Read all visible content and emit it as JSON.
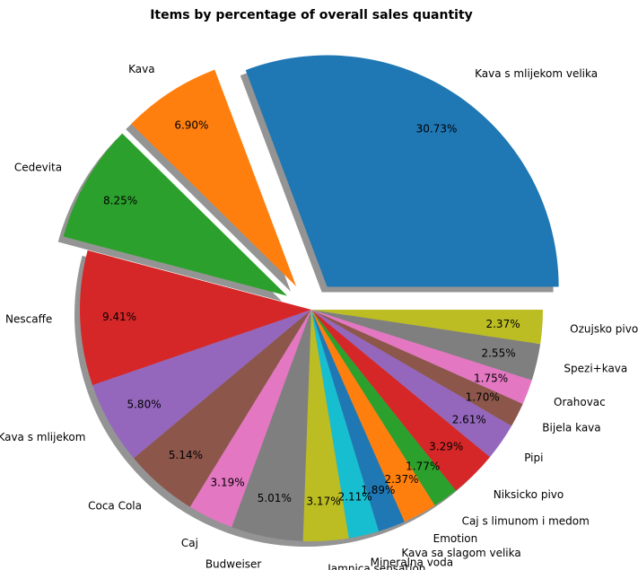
{
  "chart_data": {
    "type": "pie",
    "title": "Items by percentage of overall sales quantity",
    "shadow": true,
    "exploded": [
      "Kava s mlijekom velika",
      "Kava",
      "Cedevita"
    ],
    "slices": [
      {
        "label": "Kava s mlijekom velika",
        "value": 30.73,
        "pct_text": "30.73%",
        "color": "#1f77b4"
      },
      {
        "label": "Kava",
        "value": 6.9,
        "pct_text": "6.90%",
        "color": "#ff7f0e"
      },
      {
        "label": "Cedevita",
        "value": 8.25,
        "pct_text": "8.25%",
        "color": "#2ca02c"
      },
      {
        "label": "Nescaffe",
        "value": 9.41,
        "pct_text": "9.41%",
        "color": "#d62728"
      },
      {
        "label": "Kava s mlijekom",
        "value": 5.8,
        "pct_text": "5.80%",
        "color": "#9467bd"
      },
      {
        "label": "Coca Cola",
        "value": 5.14,
        "pct_text": "5.14%",
        "color": "#8c564b"
      },
      {
        "label": "Caj",
        "value": 3.19,
        "pct_text": "3.19%",
        "color": "#e377c2"
      },
      {
        "label": "Budweiser",
        "value": 5.01,
        "pct_text": "5.01%",
        "color": "#7f7f7f"
      },
      {
        "label": "Jamnica sensation",
        "value": 3.17,
        "pct_text": "3.17%",
        "color": "#bcbd22"
      },
      {
        "label": "Mineralna voda",
        "value": 2.11,
        "pct_text": "2.11%",
        "color": "#17becf"
      },
      {
        "label": "Kava sa slagom velika",
        "value": 1.89,
        "pct_text": "1.89%",
        "color": "#1f77b4"
      },
      {
        "label": "Emotion",
        "value": 2.37,
        "pct_text": "2.37%",
        "color": "#ff7f0e"
      },
      {
        "label": "Caj s limunom i medom",
        "value": 1.77,
        "pct_text": "1.77%",
        "color": "#2ca02c"
      },
      {
        "label": "Niksicko pivo",
        "value": 3.29,
        "pct_text": "3.29%",
        "color": "#d62728"
      },
      {
        "label": "Pipi",
        "value": 2.61,
        "pct_text": "2.61%",
        "color": "#9467bd"
      },
      {
        "label": "Bijela kava",
        "value": 1.7,
        "pct_text": "1.70%",
        "color": "#8c564b"
      },
      {
        "label": "Orahovac",
        "value": 1.75,
        "pct_text": "1.75%",
        "color": "#e377c2"
      },
      {
        "label": "Spezi+kava",
        "value": 2.55,
        "pct_text": "2.55%",
        "color": "#7f7f7f"
      },
      {
        "label": "Ozujsko pivo",
        "value": 2.37,
        "pct_text": "2.37%",
        "color": "#bcbd22"
      }
    ]
  }
}
